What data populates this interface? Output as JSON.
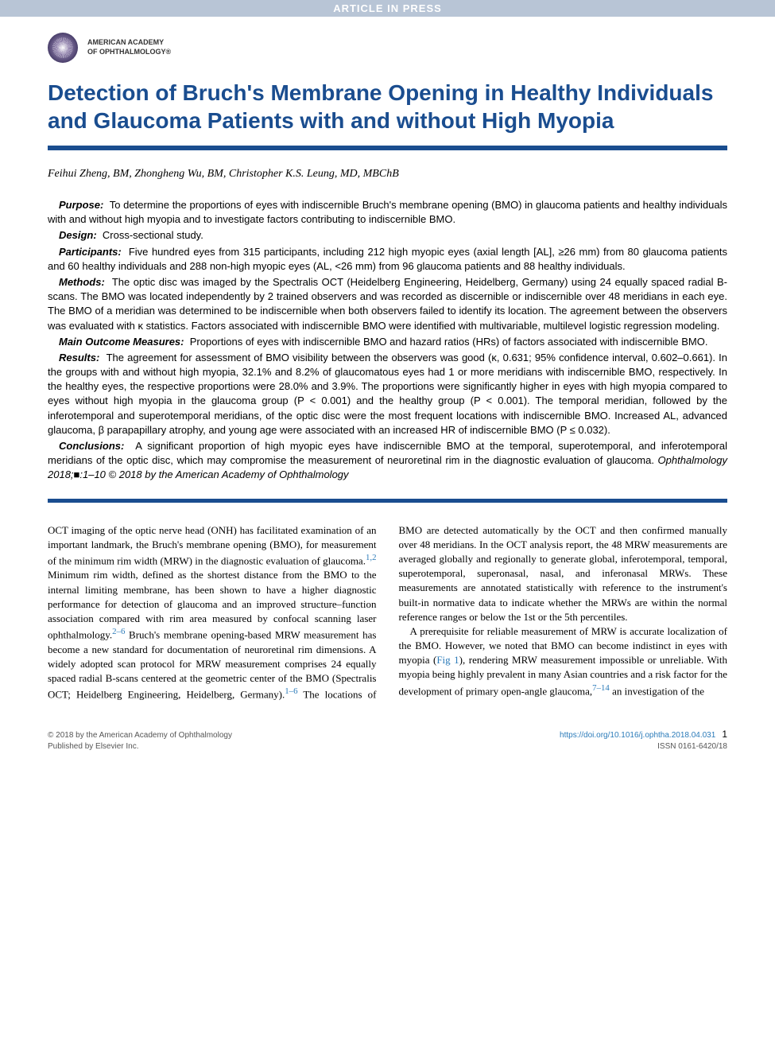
{
  "topbar": "ARTICLE IN PRESS",
  "publisher": {
    "line1": "AMERICAN ACADEMY",
    "line2": "OF OPHTHALMOLOGY®"
  },
  "title": "Detection of Bruch's Membrane Opening in Healthy Individuals and Glaucoma Patients with and without High Myopia",
  "authors": "Feihui Zheng, BM, Zhongheng Wu, BM, Christopher K.S. Leung, MD, MBChB",
  "abstract": {
    "purpose": {
      "label": "Purpose:",
      "text": "To determine the proportions of eyes with indiscernible Bruch's membrane opening (BMO) in glaucoma patients and healthy individuals with and without high myopia and to investigate factors contributing to indiscernible BMO."
    },
    "design": {
      "label": "Design:",
      "text": "Cross-sectional study."
    },
    "participants": {
      "label": "Participants:",
      "text": "Five hundred eyes from 315 participants, including 212 high myopic eyes (axial length [AL], ≥26 mm) from 80 glaucoma patients and 60 healthy individuals and 288 non-high myopic eyes (AL, <26 mm) from 96 glaucoma patients and 88 healthy individuals."
    },
    "methods": {
      "label": "Methods:",
      "text": "The optic disc was imaged by the Spectralis OCT (Heidelberg Engineering, Heidelberg, Germany) using 24 equally spaced radial B-scans. The BMO was located independently by 2 trained observers and was recorded as discernible or indiscernible over 48 meridians in each eye. The BMO of a meridian was determined to be indiscernible when both observers failed to identify its location. The agreement between the observers was evaluated with κ statistics. Factors associated with indiscernible BMO were identified with multivariable, multilevel logistic regression modeling."
    },
    "main_outcome": {
      "label": "Main Outcome Measures:",
      "text": "Proportions of eyes with indiscernible BMO and hazard ratios (HRs) of factors associated with indiscernible BMO."
    },
    "results": {
      "label": "Results:",
      "text": "The agreement for assessment of BMO visibility between the observers was good (κ, 0.631; 95% confidence interval, 0.602–0.661). In the groups with and without high myopia, 32.1% and 8.2% of glaucomatous eyes had 1 or more meridians with indiscernible BMO, respectively. In the healthy eyes, the respective proportions were 28.0% and 3.9%. The proportions were significantly higher in eyes with high myopia compared to eyes without high myopia in the glaucoma group (P < 0.001) and the healthy group (P < 0.001). The temporal meridian, followed by the inferotemporal and superotemporal meridians, of the optic disc were the most frequent locations with indiscernible BMO. Increased AL, advanced glaucoma, β parapapillary atrophy, and young age were associated with an increased HR of indiscernible BMO (P ≤ 0.032)."
    },
    "conclusions": {
      "label": "Conclusions:",
      "text_a": "A significant proportion of high myopic eyes have indiscernible BMO at the temporal, superotemporal, and inferotemporal meridians of the optic disc, which may compromise the measurement of neuroretinal rim in the diagnostic evaluation of glaucoma. ",
      "text_b": "Ophthalmology 2018;■:1–10 © 2018 by the American Academy of Ophthalmology"
    }
  },
  "body": {
    "p1_a": "OCT imaging of the optic nerve head (ONH) has facilitated examination of an important landmark, the Bruch's membrane opening (BMO), for measurement of the minimum rim width (MRW) in the diagnostic evaluation of glaucoma.",
    "ref1": "1,2",
    "p1_b": " Minimum rim width, defined as the shortest distance from the BMO to the internal limiting membrane, has been shown to have a higher diagnostic performance for detection of glaucoma and an improved structure–function association compared with rim area measured by confocal scanning laser ophthalmology.",
    "ref2": "2–6",
    "p1_c": " Bruch's membrane opening-based MRW measurement has become a new standard for documentation of neuroretinal rim dimensions. A widely adopted scan protocol for MRW measurement comprises 24 equally spaced radial B-scans centered at the geometric center of the BMO (Spectralis OCT; Heidelberg Engineering, Heidelberg, Germany).",
    "ref3": "1–6",
    "p1_d": " The locations of BMO are detected automatically by the OCT and then confirmed manually over 48 meridians. In the OCT analysis report, the 48 MRW measurements are averaged globally and regionally to generate global, inferotemporal, temporal, superotemporal, superonasal, nasal, and inferonasal MRWs. These measurements are annotated statistically with reference to the instrument's built-in normative data to indicate whether the MRWs are within the normal reference ranges or below the 1st or the 5th percentiles.",
    "p2_a": "A prerequisite for reliable measurement of MRW is accurate localization of the BMO. However, we noted that BMO can become indistinct in eyes with myopia (",
    "fig1": "Fig 1",
    "p2_b": "), rendering MRW measurement impossible or unreliable. With myopia being highly prevalent in many Asian countries and a risk factor for the development of primary open-angle glaucoma,",
    "ref4": "7–14",
    "p2_c": " an investigation of the"
  },
  "footer": {
    "copyright": "© 2018 by the American Academy of Ophthalmology",
    "published": "Published by Elsevier Inc.",
    "doi": "https://doi.org/10.1016/j.ophtha.2018.04.031",
    "issn": "ISSN 0161-6420/18",
    "page": "1"
  },
  "colors": {
    "topbar_bg": "#b8c5d6",
    "title_color": "#1a4d8f",
    "rule_color": "#1a4d8f",
    "link_color": "#2b7bb9",
    "body_text": "#000000"
  }
}
